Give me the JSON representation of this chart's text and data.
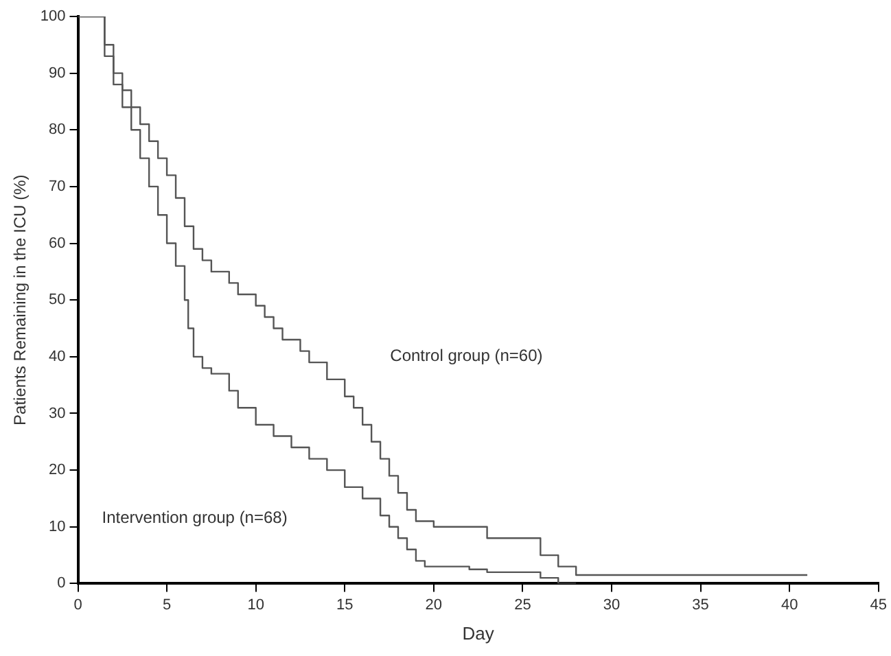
{
  "chart_data": {
    "type": "step",
    "xlabel": "Day",
    "ylabel": "Patients Remaining in the ICU (%)",
    "xlim": [
      0,
      45
    ],
    "xticks": [
      0,
      5,
      10,
      15,
      20,
      25,
      30,
      35,
      40,
      45
    ],
    "ylim": [
      0,
      100
    ],
    "yticks": [
      0,
      10,
      20,
      30,
      40,
      50,
      60,
      70,
      80,
      90,
      100
    ],
    "grid": false,
    "legend": false,
    "marker": "none",
    "line_style": "solid",
    "annotations": [
      "Control group (n=60)",
      "Intervention group (n=68)"
    ],
    "series": [
      {
        "color": "#555555",
        "x": [
          0,
          1.5,
          2,
          2.5,
          3,
          3.5,
          4,
          4.5,
          5,
          5.5,
          6,
          6.5,
          7,
          7.5,
          8.5,
          9,
          10,
          10.5,
          11,
          11.5,
          12.5,
          13,
          14,
          15,
          15.5,
          16,
          16.5,
          17,
          17.5,
          18,
          18.5,
          19,
          20,
          23,
          26,
          27,
          28,
          28.5,
          41
        ],
        "values": [
          100,
          100,
          95,
          90,
          87,
          84,
          81,
          78,
          75,
          72,
          68,
          63,
          59,
          57,
          55,
          53,
          51,
          49,
          47,
          45,
          43,
          41,
          39,
          36,
          33,
          31,
          28,
          25,
          22,
          19,
          16,
          13,
          11,
          10,
          8,
          5,
          3,
          1.5,
          1.5
        ]
      },
      {
        "color": "#555555",
        "x": [
          0,
          1.5,
          2,
          2.5,
          3,
          3.5,
          4,
          4.5,
          5,
          5.5,
          6,
          6.2,
          6.5,
          7,
          7.5,
          8.5,
          9,
          10,
          11,
          12,
          13,
          14,
          15,
          16,
          17,
          17.5,
          18,
          18.5,
          19,
          19.5,
          20,
          22,
          23,
          26,
          27,
          28
        ],
        "values": [
          100,
          100,
          93,
          88,
          84,
          80,
          75,
          70,
          65,
          60,
          56,
          50,
          45,
          40,
          38,
          37,
          34,
          31,
          28,
          26,
          24,
          22,
          20,
          17,
          15,
          12,
          10,
          8,
          6,
          4,
          3,
          3,
          2.5,
          2,
          1,
          0
        ]
      }
    ]
  }
}
